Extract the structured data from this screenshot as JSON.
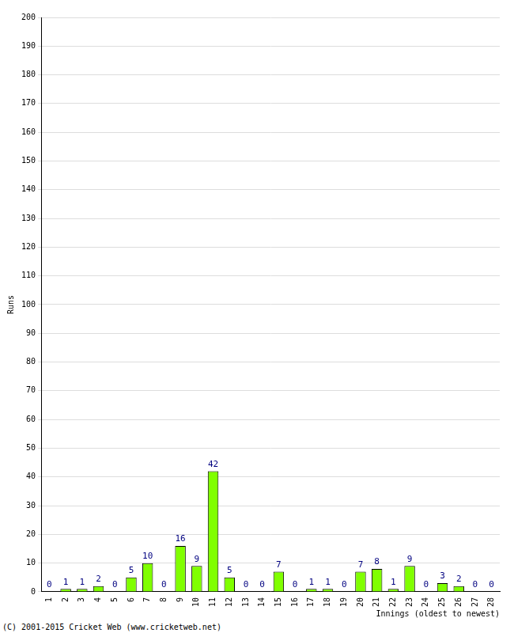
{
  "chart_data": {
    "type": "bar",
    "x_label": "Innings (oldest to newest)",
    "y_label": "Runs",
    "annotations": [
      "(C) 2001-2015 Cricket Web (www.cricketweb.net)"
    ],
    "categories": [
      "1",
      "2",
      "3",
      "4",
      "5",
      "6",
      "7",
      "8",
      "9",
      "10",
      "11",
      "12",
      "13",
      "14",
      "15",
      "16",
      "17",
      "18",
      "19",
      "20",
      "21",
      "22",
      "23",
      "24",
      "25",
      "26",
      "27",
      "28"
    ],
    "values": [
      0,
      1,
      1,
      2,
      0,
      5,
      10,
      0,
      16,
      9,
      42,
      5,
      0,
      0,
      7,
      0,
      1,
      1,
      0,
      7,
      8,
      1,
      9,
      0,
      3,
      2,
      0,
      0
    ],
    "color": "#80ff00",
    "ylim": [
      0,
      200
    ],
    "yticks": [
      0,
      10,
      20,
      30,
      40,
      50,
      60,
      70,
      80,
      90,
      100,
      110,
      120,
      130,
      140,
      150,
      160,
      170,
      180,
      190,
      200
    ],
    "grid": true,
    "data_labels": true
  }
}
